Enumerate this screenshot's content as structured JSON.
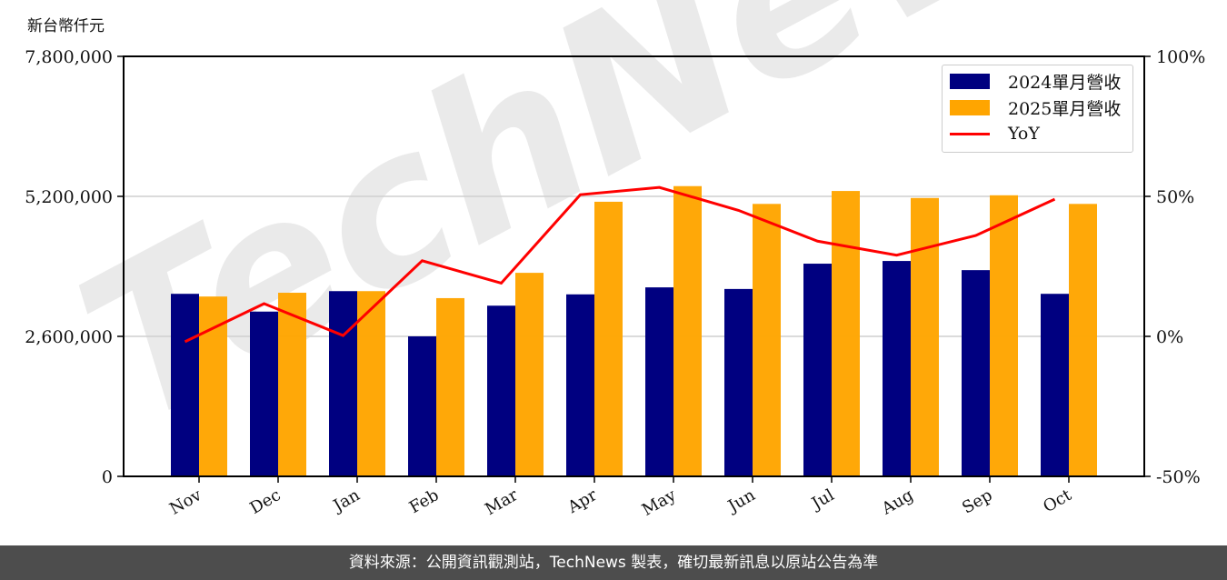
{
  "chart_data": {
    "type": "bar",
    "title": "",
    "ylabel": "新台幣仟元",
    "xlabel": "",
    "categories": [
      "Nov",
      "Dec",
      "Jan",
      "Feb",
      "Mar",
      "Apr",
      "May",
      "Jun",
      "Jul",
      "Aug",
      "Sep",
      "Oct"
    ],
    "series": [
      {
        "name": "2024單月營收",
        "type": "bar",
        "color": "#000080",
        "axis": "left",
        "values": [
          3390000,
          3060000,
          3440000,
          2600000,
          3170000,
          3380000,
          3510000,
          3480000,
          3950000,
          4000000,
          3830000,
          3390000
        ]
      },
      {
        "name": "2025單月營收",
        "type": "bar",
        "color": "#FFA500",
        "axis": "left",
        "values": [
          3340000,
          3410000,
          3440000,
          3310000,
          3780000,
          5100000,
          5390000,
          5060000,
          5300000,
          5170000,
          5220000,
          5060000
        ]
      },
      {
        "name": "YoY",
        "type": "line",
        "color": "#FF0000",
        "axis": "right",
        "unit": "%",
        "values": [
          -1.9,
          11.7,
          0.3,
          27.0,
          19.0,
          50.6,
          53.2,
          45.0,
          34.0,
          29.0,
          36.0,
          49.0
        ]
      }
    ],
    "ylim": [
      0,
      7800000
    ],
    "y_ticks": [
      0,
      2600000,
      5200000,
      7800000
    ],
    "y_tick_labels": [
      "0",
      "2,600,000",
      "5,200,000",
      "7,800,000"
    ],
    "y2lim": [
      -50,
      100
    ],
    "y2_ticks": [
      -50,
      0,
      50,
      100
    ],
    "y2_tick_labels": [
      "-50%",
      "0%",
      "50%",
      "100%"
    ],
    "grid": "horizontal",
    "legend_position": "upper right",
    "watermark": "TechNews"
  },
  "header": {
    "unit_label": "新台幣仟元"
  },
  "legend": {
    "items": [
      {
        "label": "2024單月營收",
        "color": "#000080",
        "kind": "bar"
      },
      {
        "label": "2025單月營收",
        "color": "#FFA500",
        "kind": "bar"
      },
      {
        "label": "YoY",
        "color": "#FF0000",
        "kind": "line"
      }
    ]
  },
  "footer": {
    "source_text": "資料來源：公開資訊觀測站，TechNews 製表，確切最新訊息以原站公告為準"
  }
}
